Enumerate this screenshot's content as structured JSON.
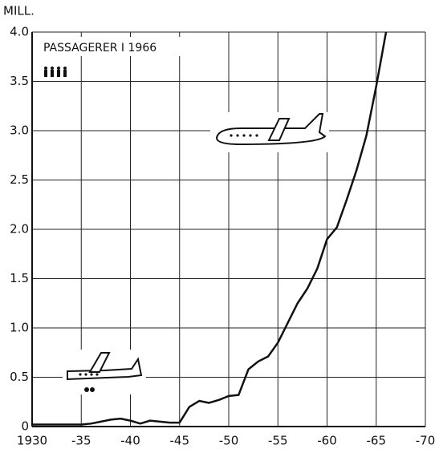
{
  "chart_data": {
    "type": "line",
    "y_label": "MILL.",
    "annotation": "PASSAGERER I 1966",
    "x": [
      1930,
      1935,
      1936,
      1937,
      1938,
      1939,
      1940,
      1941,
      1942,
      1943,
      1944,
      1945,
      1946,
      1947,
      1948,
      1949,
      1950,
      1951,
      1952,
      1953,
      1954,
      1955,
      1956,
      1957,
      1958,
      1959,
      1960,
      1961,
      1962,
      1963,
      1964,
      1965,
      1966
    ],
    "series": [
      {
        "color": "#111111",
        "values": [
          0.02,
          0.02,
          0.03,
          0.05,
          0.07,
          0.08,
          0.06,
          0.03,
          0.06,
          0.05,
          0.04,
          0.04,
          0.2,
          0.26,
          0.24,
          0.27,
          0.31,
          0.32,
          0.58,
          0.66,
          0.71,
          0.85,
          1.05,
          1.25,
          1.4,
          1.6,
          1.9,
          2.02,
          2.3,
          2.6,
          2.95,
          3.45,
          4.0
        ]
      }
    ],
    "xlim": [
      1930,
      1970
    ],
    "xticks": [
      {
        "value": 1930,
        "label": "1930"
      },
      {
        "value": 1935,
        "label": "-35"
      },
      {
        "value": 1940,
        "label": "-40"
      },
      {
        "value": 1945,
        "label": "-45"
      },
      {
        "value": 1950,
        "label": "-50"
      },
      {
        "value": 1955,
        "label": "-55"
      },
      {
        "value": 1960,
        "label": "-60"
      },
      {
        "value": 1965,
        "label": "-65"
      },
      {
        "value": 1970,
        "label": "-70"
      }
    ],
    "ylim": [
      0,
      4
    ],
    "yticks": [
      0,
      0.5,
      {
        "value": 1,
        "label": "1.0"
      },
      1.5,
      {
        "value": 2,
        "label": "2.0"
      },
      2.5,
      {
        "value": 3,
        "label": "3.0"
      },
      3.5,
      {
        "value": 4,
        "label": "4.0"
      }
    ],
    "grid": true
  }
}
